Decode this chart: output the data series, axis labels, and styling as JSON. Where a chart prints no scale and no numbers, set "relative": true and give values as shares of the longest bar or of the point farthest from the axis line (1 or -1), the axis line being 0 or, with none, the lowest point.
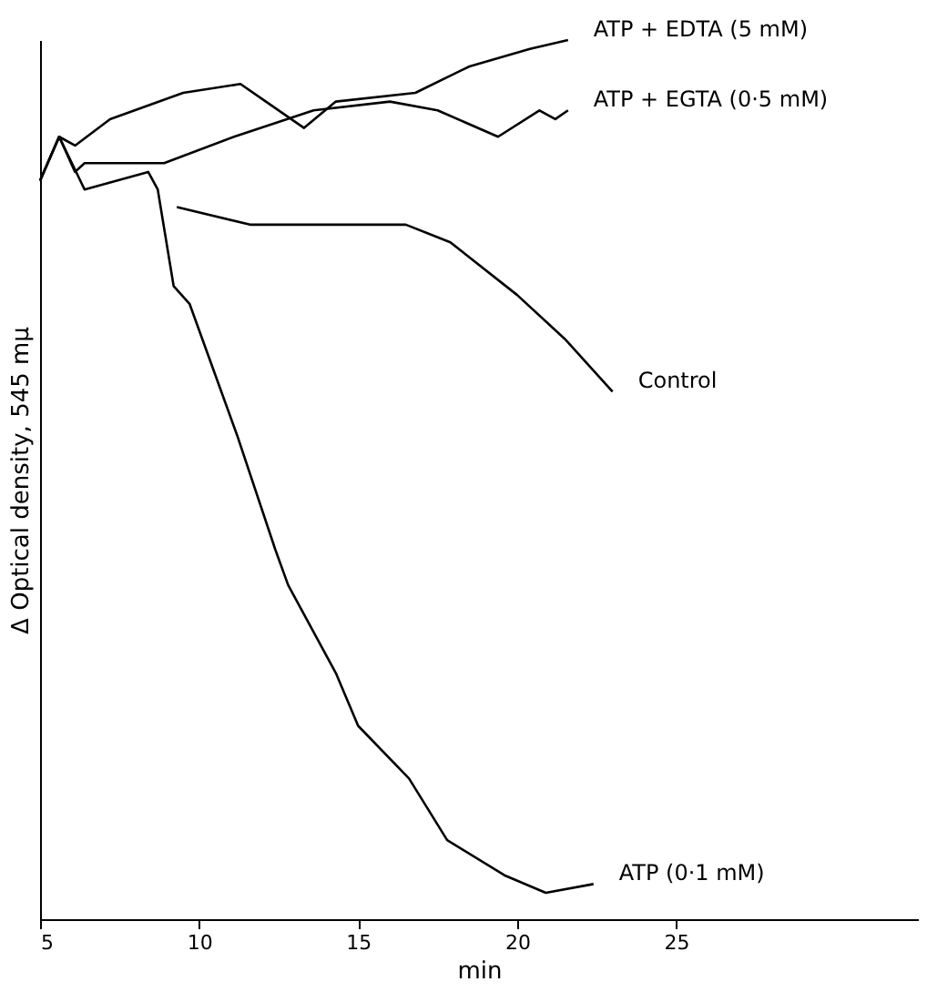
{
  "chart_data": {
    "type": "line",
    "relative": true,
    "xlabel": "min",
    "ylabel": "Δ Optical density,  545 mμ",
    "xlim": [
      5,
      32.6
    ],
    "xticks": [
      5,
      10,
      15,
      20,
      25
    ],
    "grid": false,
    "marker": "none",
    "line_style": "solid",
    "series": [
      {
        "name": "ATP + EDTA (5 mM)",
        "color": "#000000",
        "x": [
          5.0,
          5.6,
          6.1,
          7.2,
          9.5,
          11.3,
          12.1,
          13.3,
          14.3,
          16.8,
          18.5,
          20.4,
          21.6
        ],
        "values": [
          0.84,
          0.89,
          0.88,
          0.91,
          0.94,
          0.95,
          0.93,
          0.9,
          0.93,
          0.94,
          0.97,
          0.99,
          1.0
        ]
      },
      {
        "name": "ATP + EGTA (0·5 mM)",
        "color": "#000000",
        "x": [
          5.0,
          5.6,
          6.1,
          6.4,
          8.9,
          11.1,
          13.6,
          16.0,
          17.5,
          19.4,
          20.7,
          21.2,
          21.6
        ],
        "values": [
          0.84,
          0.89,
          0.85,
          0.86,
          0.86,
          0.89,
          0.92,
          0.93,
          0.92,
          0.89,
          0.92,
          0.91,
          0.92
        ]
      },
      {
        "name": "Control",
        "color": "#000000",
        "x": [
          9.3,
          11.6,
          16.5,
          17.9,
          20.0,
          21.5,
          23.0
        ],
        "values": [
          0.81,
          0.79,
          0.79,
          0.77,
          0.71,
          0.66,
          0.6
        ]
      },
      {
        "name": "ATP (0·1 mM)",
        "color": "#000000",
        "x": [
          5.0,
          5.6,
          6.4,
          8.4,
          8.7,
          9.2,
          9.7,
          11.2,
          12.4,
          12.8,
          14.3,
          15.0,
          16.6,
          17.8,
          19.6,
          20.9,
          22.4
        ],
        "values": [
          0.84,
          0.89,
          0.83,
          0.85,
          0.83,
          0.72,
          0.7,
          0.55,
          0.42,
          0.38,
          0.28,
          0.22,
          0.16,
          0.09,
          0.05,
          0.03,
          0.04
        ]
      }
    ]
  }
}
